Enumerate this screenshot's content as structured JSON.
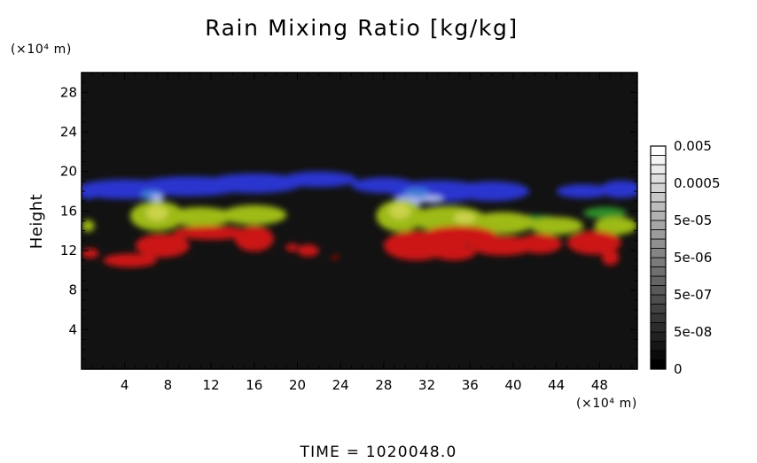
{
  "chart_data": {
    "type": "heatmap",
    "title": "Rain Mixing Ratio [kg/kg]",
    "xlabel": "",
    "ylabel": "Height",
    "x_unit_label": "(×10⁴ m)",
    "y_unit_label": "(×10⁴ m)",
    "xlim": [
      0,
      51.5
    ],
    "ylim": [
      0,
      30
    ],
    "x_ticks": [
      4,
      8,
      12,
      16,
      20,
      24,
      28,
      32,
      36,
      40,
      44,
      48
    ],
    "x_tick_labels": [
      "4",
      "8",
      "12",
      "16",
      "20",
      "24",
      "28",
      "32",
      "36",
      "40",
      "44",
      "48"
    ],
    "y_ticks": [
      4,
      8,
      12,
      16,
      20,
      24,
      28
    ],
    "y_tick_labels": [
      "4",
      "8",
      "12",
      "16",
      "20",
      "24",
      "28"
    ],
    "colorbar": {
      "labels": [
        "0",
        "5e-08",
        "5e-07",
        "5e-06",
        "5e-05",
        "0.0005",
        "0.005"
      ],
      "segments": 24,
      "low_color": "#000000",
      "high_color": "#ffffff"
    },
    "background_color": "#121212",
    "bands": [
      {
        "color": "#2b35cf",
        "blobs": [
          {
            "x": 4.0,
            "y": 18.2,
            "rx": 4.5,
            "ry": 1.0
          },
          {
            "x": 10.0,
            "y": 18.5,
            "rx": 5.0,
            "ry": 1.0
          },
          {
            "x": 16.0,
            "y": 18.8,
            "rx": 4.5,
            "ry": 1.0
          },
          {
            "x": 22.0,
            "y": 19.2,
            "rx": 3.5,
            "ry": 0.8
          },
          {
            "x": 28.0,
            "y": 18.6,
            "rx": 3.0,
            "ry": 0.8
          },
          {
            "x": 33.0,
            "y": 18.0,
            "rx": 4.5,
            "ry": 1.1
          },
          {
            "x": 38.0,
            "y": 18.0,
            "rx": 3.5,
            "ry": 1.0
          },
          {
            "x": 46.5,
            "y": 18.0,
            "rx": 2.5,
            "ry": 0.7
          },
          {
            "x": 50.0,
            "y": 18.2,
            "rx": 2.0,
            "ry": 0.9
          },
          {
            "x": 0.7,
            "y": 18.0,
            "rx": 1.0,
            "ry": 0.8
          }
        ]
      },
      {
        "color": "#3f7bd8",
        "blobs": [
          {
            "x": 6.5,
            "y": 17.6,
            "rx": 1.0,
            "ry": 0.5
          },
          {
            "x": 31.0,
            "y": 17.8,
            "rx": 1.2,
            "ry": 0.5
          }
        ]
      },
      {
        "color": "#a6b1ee",
        "blobs": [
          {
            "x": 7.0,
            "y": 17.3,
            "rx": 0.6,
            "ry": 0.4
          },
          {
            "x": 30.3,
            "y": 17.0,
            "rx": 1.4,
            "ry": 0.5
          },
          {
            "x": 32.5,
            "y": 17.2,
            "rx": 1.0,
            "ry": 0.4
          }
        ]
      },
      {
        "color": "#2f8e2a",
        "blobs": [
          {
            "x": 12.0,
            "y": 15.5,
            "rx": 3.5,
            "ry": 0.7
          },
          {
            "x": 42.0,
            "y": 15.0,
            "rx": 2.5,
            "ry": 0.6
          },
          {
            "x": 48.5,
            "y": 15.8,
            "rx": 2.0,
            "ry": 0.6
          }
        ]
      },
      {
        "color": "#9dba19",
        "blobs": [
          {
            "x": 7.0,
            "y": 15.5,
            "rx": 2.5,
            "ry": 1.5
          },
          {
            "x": 11.0,
            "y": 15.4,
            "rx": 3.0,
            "ry": 1.0
          },
          {
            "x": 16.0,
            "y": 15.6,
            "rx": 3.0,
            "ry": 1.0
          },
          {
            "x": 29.5,
            "y": 15.5,
            "rx": 2.2,
            "ry": 1.6
          },
          {
            "x": 34.0,
            "y": 15.2,
            "rx": 3.5,
            "ry": 1.3
          },
          {
            "x": 39.0,
            "y": 14.8,
            "rx": 3.0,
            "ry": 1.1
          },
          {
            "x": 44.0,
            "y": 14.5,
            "rx": 2.5,
            "ry": 0.9
          },
          {
            "x": 49.5,
            "y": 14.5,
            "rx": 2.0,
            "ry": 0.9
          },
          {
            "x": 0.6,
            "y": 14.5,
            "rx": 0.6,
            "ry": 0.6
          }
        ]
      },
      {
        "color": "#cbd34a",
        "blobs": [
          {
            "x": 7.0,
            "y": 15.8,
            "rx": 1.0,
            "ry": 0.8
          },
          {
            "x": 29.5,
            "y": 16.0,
            "rx": 1.0,
            "ry": 0.8
          },
          {
            "x": 35.5,
            "y": 15.3,
            "rx": 1.0,
            "ry": 0.6
          }
        ]
      },
      {
        "color": "#cc1818",
        "blobs": [
          {
            "x": 4.5,
            "y": 11.0,
            "rx": 2.5,
            "ry": 0.7
          },
          {
            "x": 7.5,
            "y": 12.5,
            "rx": 2.5,
            "ry": 1.2
          },
          {
            "x": 12.0,
            "y": 13.8,
            "rx": 3.5,
            "ry": 0.7
          },
          {
            "x": 16.0,
            "y": 13.2,
            "rx": 1.8,
            "ry": 1.3
          },
          {
            "x": 19.5,
            "y": 12.3,
            "rx": 0.6,
            "ry": 0.4
          },
          {
            "x": 21.0,
            "y": 12.0,
            "rx": 1.0,
            "ry": 0.6
          },
          {
            "x": 23.5,
            "y": 11.3,
            "rx": 0.3,
            "ry": 0.2
          },
          {
            "x": 31.0,
            "y": 12.5,
            "rx": 3.0,
            "ry": 1.5
          },
          {
            "x": 35.0,
            "y": 13.5,
            "rx": 3.5,
            "ry": 1.0
          },
          {
            "x": 34.5,
            "y": 11.8,
            "rx": 2.0,
            "ry": 0.8
          },
          {
            "x": 39.0,
            "y": 12.5,
            "rx": 3.0,
            "ry": 1.0
          },
          {
            "x": 42.5,
            "y": 12.7,
            "rx": 2.0,
            "ry": 1.0
          },
          {
            "x": 47.5,
            "y": 12.8,
            "rx": 2.5,
            "ry": 1.2
          },
          {
            "x": 49.0,
            "y": 11.3,
            "rx": 0.8,
            "ry": 0.8
          },
          {
            "x": 0.8,
            "y": 11.7,
            "rx": 0.8,
            "ry": 0.5
          }
        ]
      }
    ]
  },
  "time_label": "TIME  =  1020048.0"
}
